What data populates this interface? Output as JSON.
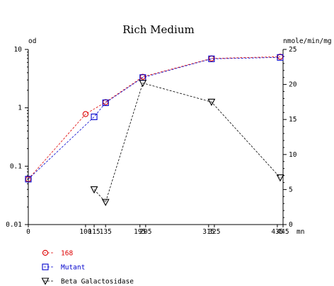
{
  "chart_data": {
    "type": "line",
    "title": "Rich Medium",
    "ylabel": "od",
    "y2label": "nmole/min/mg",
    "xunit": "mn",
    "x_ticks": [
      "0",
      "100",
      "115",
      "135",
      "195",
      "205",
      "315",
      "325",
      "435",
      "445"
    ],
    "y_ticks": [
      "10",
      "1",
      "0.1",
      "0.01"
    ],
    "y2_ticks": [
      "25",
      "20",
      "15",
      "10",
      "5",
      "0"
    ],
    "ylim": [
      0.01,
      10
    ],
    "y_scale": "log",
    "y2lim": [
      0,
      25
    ],
    "xlim": [
      0,
      445
    ],
    "legend_position": "bottom-left",
    "series": [
      {
        "name": "168",
        "axis": "left",
        "color": "#dd0000",
        "marker": "circle",
        "x": [
          0,
          100,
          135,
          200,
          320,
          440
        ],
        "y": [
          0.06,
          0.78,
          1.25,
          3.4,
          7.0,
          7.5
        ]
      },
      {
        "name": "Mutant",
        "axis": "left",
        "color": "#0000cc",
        "marker": "square",
        "x": [
          0,
          115,
          135,
          200,
          320,
          440
        ],
        "y": [
          0.06,
          0.7,
          1.22,
          3.3,
          6.9,
          7.3
        ]
      },
      {
        "name": "Beta Galactosidase",
        "axis": "right",
        "color": "#000000",
        "marker": "triangle-down",
        "x": [
          115,
          135,
          200,
          320,
          440
        ],
        "y": [
          5.0,
          3.2,
          20.2,
          17.5,
          6.7
        ]
      }
    ]
  }
}
